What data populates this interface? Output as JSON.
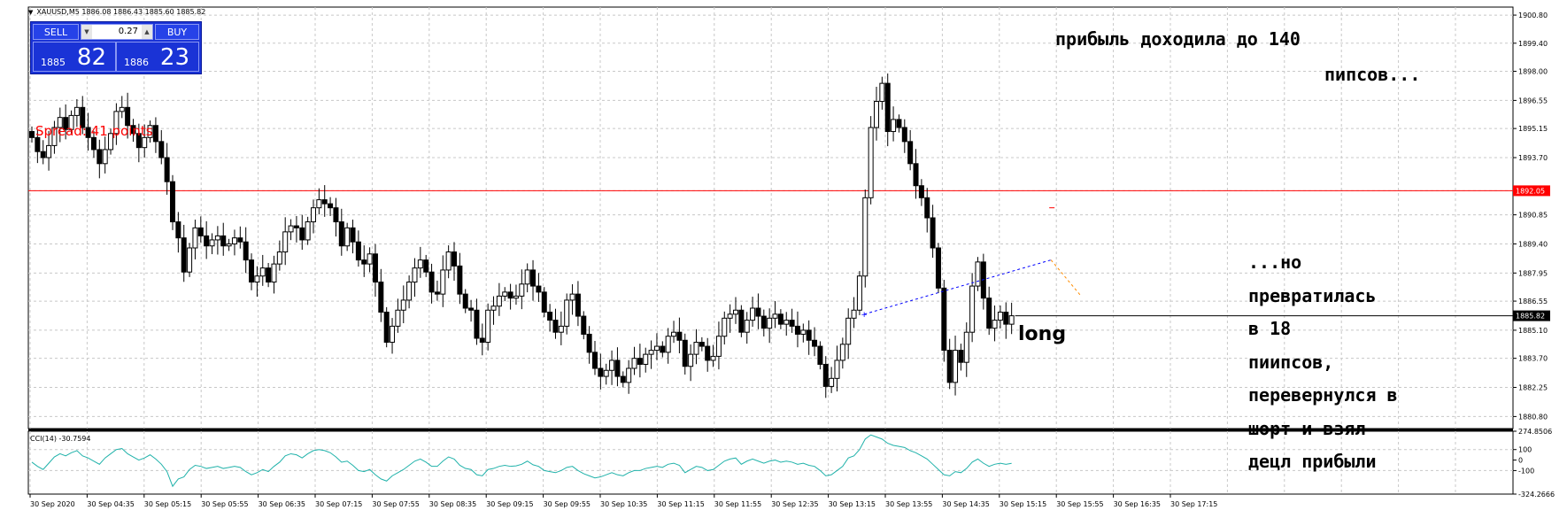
{
  "header": {
    "symbol_text": "XAUUSD,M5  1886.08 1886.43 1885.60 1885.82"
  },
  "trade_panel": {
    "sell_label": "SELL",
    "buy_label": "BUY",
    "lot_value": "0.27",
    "sell_small": "1885",
    "sell_big": "82",
    "buy_small": "1886",
    "buy_big": "23"
  },
  "spread_text": "Spread: 41 points",
  "annotations": {
    "profit_line1": "прибыль доходила до 140",
    "profit_line2": "пипсов...",
    "long": "long",
    "r1": "...но",
    "r2": "превратилась",
    "r3": "в 18",
    "r4": "пиипсов,",
    "r5": "перевернулся в",
    "r6": "шорт и взял",
    "r7": "децл прибыли"
  },
  "indicator": {
    "label": "CCI(14) -30.7594"
  },
  "colors": {
    "up_candle": "#ffffff",
    "down_candle": "#000000",
    "grid": "#c8c8c8",
    "red_line": "#ff0000",
    "cci_line": "#20b2aa",
    "trade_line": "#0000ff",
    "exit_line": "#ff8c00"
  },
  "chart_data": {
    "type": "candlestick",
    "symbol": "XAUUSD",
    "timeframe": "M5",
    "price_axis": [
      "1900.80",
      "1899.40",
      "1898.00",
      "1896.55",
      "1895.15",
      "1893.70",
      "1892.05",
      "1890.85",
      "1889.40",
      "1887.95",
      "1886.55",
      "1885.10",
      "1883.70",
      "1882.25",
      "1880.80"
    ],
    "price_range": [
      1880.2,
      1901.2
    ],
    "marked_prices": {
      "red_line": "1892.05",
      "current": "1885.82"
    },
    "cci_axis": [
      "274.8506",
      "100",
      "0",
      "-100",
      "-324.2666"
    ],
    "cci_range": [
      -324.2666,
      274.8506
    ],
    "time_labels": [
      "30 Sep 2020",
      "30 Sep 04:35",
      "30 Sep 05:15",
      "30 Sep 05:55",
      "30 Sep 06:35",
      "30 Sep 07:15",
      "30 Sep 07:55",
      "30 Sep 08:35",
      "30 Sep 09:15",
      "30 Sep 09:55",
      "30 Sep 10:35",
      "30 Sep 11:15",
      "30 Sep 11:55",
      "30 Sep 12:35",
      "30 Sep 13:15",
      "30 Sep 13:55",
      "30 Sep 14:35",
      "30 Sep 15:15",
      "30 Sep 15:55",
      "30 Sep 16:35",
      "30 Sep 17:15"
    ],
    "close": [
      1894.7,
      1894.0,
      1893.7,
      1894.3,
      1895.2,
      1895.7,
      1895.1,
      1895.8,
      1896.2,
      1895.2,
      1894.7,
      1894.1,
      1893.4,
      1894.1,
      1894.9,
      1896.0,
      1896.2,
      1895.3,
      1894.9,
      1894.2,
      1894.7,
      1895.3,
      1894.5,
      1893.7,
      1892.5,
      1890.5,
      1889.7,
      1888.0,
      1889.2,
      1890.2,
      1889.8,
      1889.3,
      1889.6,
      1889.8,
      1889.3,
      1889.4,
      1889.7,
      1889.5,
      1888.6,
      1887.5,
      1887.8,
      1888.2,
      1887.5,
      1888.4,
      1889.0,
      1890.0,
      1890.3,
      1890.2,
      1889.6,
      1890.5,
      1891.2,
      1891.6,
      1891.4,
      1891.2,
      1890.5,
      1889.3,
      1890.2,
      1889.5,
      1888.6,
      1888.4,
      1888.9,
      1887.5,
      1886.0,
      1884.5,
      1885.3,
      1886.1,
      1886.6,
      1887.5,
      1888.2,
      1888.6,
      1888.0,
      1887.0,
      1886.9,
      1888.1,
      1889.0,
      1888.3,
      1886.9,
      1886.2,
      1886.1,
      1884.7,
      1884.5,
      1886.1,
      1886.3,
      1886.8,
      1887.0,
      1886.7,
      1886.8,
      1887.4,
      1888.1,
      1887.3,
      1887.0,
      1886.0,
      1885.6,
      1885.0,
      1885.3,
      1886.6,
      1886.9,
      1885.8,
      1884.9,
      1884.0,
      1883.2,
      1882.8,
      1883.1,
      1883.6,
      1882.8,
      1882.5,
      1883.2,
      1883.7,
      1883.4,
      1883.9,
      1884.1,
      1884.3,
      1884.0,
      1884.8,
      1885.0,
      1884.6,
      1883.3,
      1883.9,
      1884.5,
      1884.3,
      1883.6,
      1883.8,
      1884.8,
      1885.7,
      1885.9,
      1886.1,
      1885.0,
      1885.6,
      1886.2,
      1885.8,
      1885.2,
      1885.7,
      1885.9,
      1885.4,
      1885.6,
      1885.3,
      1884.9,
      1885.1,
      1884.6,
      1884.3,
      1883.4,
      1882.3,
      1882.7,
      1883.6,
      1884.4,
      1885.7,
      1886.1,
      1887.8,
      1891.7,
      1895.2,
      1896.5,
      1897.4,
      1895.0,
      1895.6,
      1895.2,
      1894.5,
      1893.4,
      1892.3,
      1891.7,
      1890.7,
      1889.2,
      1887.2,
      1884.1,
      1882.5,
      1884.1,
      1883.5,
      1885.0,
      1887.3,
      1888.5,
      1886.7,
      1885.2,
      1885.6,
      1886.0,
      1885.4,
      1885.82
    ],
    "cci": [
      -20,
      -60,
      -90,
      -30,
      30,
      60,
      40,
      70,
      90,
      40,
      20,
      -10,
      -40,
      20,
      60,
      100,
      110,
      60,
      30,
      0,
      20,
      50,
      10,
      -40,
      -110,
      -250,
      -180,
      -160,
      -90,
      -50,
      -60,
      -80,
      -70,
      -60,
      -80,
      -70,
      -60,
      -70,
      -110,
      -140,
      -120,
      -90,
      -110,
      -60,
      -20,
      40,
      60,
      50,
      20,
      60,
      90,
      100,
      90,
      70,
      30,
      -20,
      -10,
      -50,
      -100,
      -110,
      -90,
      -140,
      -180,
      -200,
      -150,
      -120,
      -90,
      -50,
      -10,
      10,
      -20,
      -60,
      -60,
      -10,
      30,
      10,
      -50,
      -80,
      -90,
      -140,
      -150,
      -90,
      -80,
      -60,
      -50,
      -60,
      -55,
      -40,
      -10,
      -45,
      -60,
      -100,
      -110,
      -120,
      -100,
      -70,
      -60,
      -100,
      -130,
      -150,
      -170,
      -160,
      -140,
      -120,
      -140,
      -150,
      -120,
      -100,
      -100,
      -80,
      -70,
      -60,
      -70,
      -40,
      -30,
      -50,
      -120,
      -90,
      -60,
      -70,
      -100,
      -90,
      -50,
      -10,
      10,
      20,
      -40,
      -10,
      10,
      -10,
      -30,
      -10,
      0,
      -20,
      -10,
      -20,
      -40,
      -30,
      -50,
      -60,
      -100,
      -150,
      -140,
      -100,
      -60,
      20,
      40,
      100,
      200,
      240,
      220,
      200,
      160,
      140,
      130,
      120,
      90,
      70,
      40,
      10,
      -40,
      -90,
      -140,
      -150,
      -110,
      -120,
      -80,
      -20,
      10,
      -30,
      -60,
      -40,
      -30,
      -40,
      -30.76
    ]
  }
}
